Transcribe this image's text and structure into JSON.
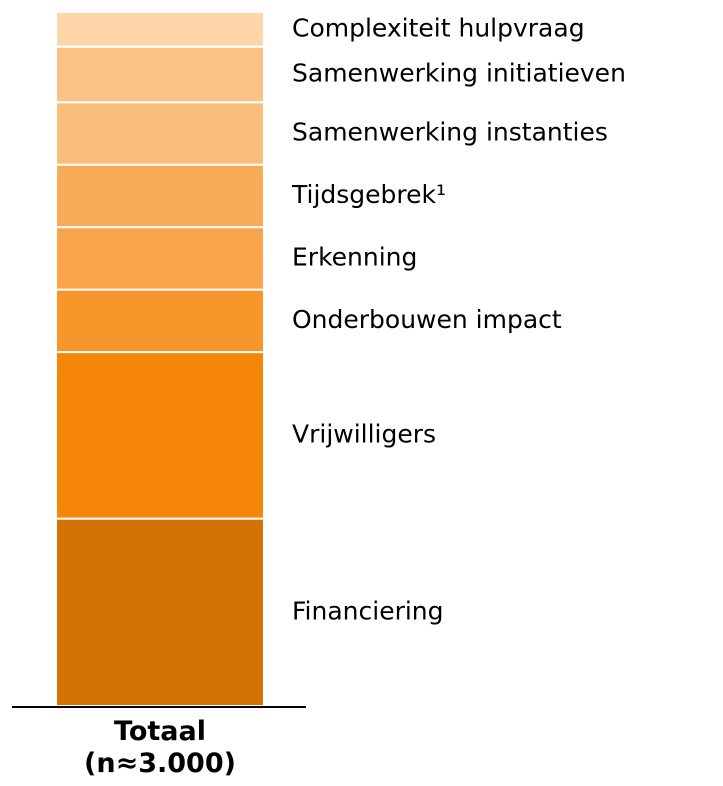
{
  "chart_data": {
    "type": "stacked-bar",
    "categories": [
      "Totaal (n≈3.000)"
    ],
    "series": [
      {
        "name": "Financiering",
        "color": "#d57204",
        "values": [
          27
        ]
      },
      {
        "name": "Vrijwilligers",
        "color": "#f5860a",
        "values": [
          24
        ]
      },
      {
        "name": "Onderbouwen impact",
        "color": "#f7962a",
        "values": [
          9
        ]
      },
      {
        "name": "Erkenning",
        "color": "#f9a34a",
        "values": [
          9
        ]
      },
      {
        "name": "Tijdsgebrek¹",
        "color": "#f9aa58",
        "values": [
          9
        ]
      },
      {
        "name": "Samenwerking instanties",
        "color": "#fbbd7b",
        "values": [
          9
        ]
      },
      {
        "name": "Samenwerking initiatieven",
        "color": "#fbc285",
        "values": [
          8
        ]
      },
      {
        "name": "Complexiteit hulpvraag",
        "color": "#fdd5a8",
        "values": [
          5
        ]
      }
    ]
  }
}
